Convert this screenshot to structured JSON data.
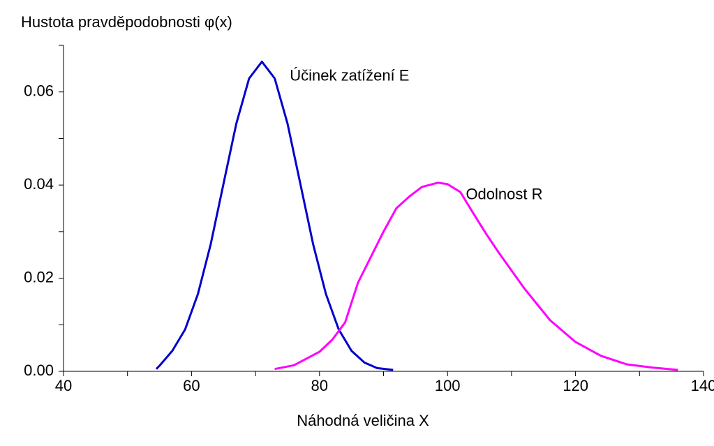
{
  "chart_data": {
    "type": "line",
    "title": "Hustota pravděpodobnosti φ(x)",
    "x_label": "Náhodná veličina X",
    "xlim": [
      40,
      140
    ],
    "xticks": [
      40,
      60,
      80,
      100,
      120,
      140
    ],
    "xminorticks": [
      50,
      70,
      90,
      110,
      130
    ],
    "ylim": [
      0,
      0.07
    ],
    "yticks": [
      {
        "value": 0,
        "label": "0.00"
      },
      {
        "value": 0.02,
        "label": "0.02"
      },
      {
        "value": 0.04,
        "label": "0.04"
      },
      {
        "value": 0.06,
        "label": "0.06"
      }
    ],
    "yminorticks": [
      0.01,
      0.03,
      0.05,
      0.07
    ],
    "grid": false,
    "series": [
      {
        "name": "Účinek zatížení E",
        "color": "#0000cc",
        "label_at": [
          71,
          0.066
        ],
        "x": [
          54.5,
          55,
          57,
          59,
          61,
          63,
          65,
          67,
          69,
          71,
          73,
          75,
          77,
          79,
          81,
          83,
          85,
          87,
          89,
          91.5
        ],
        "values": [
          0.0005,
          0.0012,
          0.0044,
          0.009,
          0.0166,
          0.0273,
          0.0403,
          0.0532,
          0.0629,
          0.0665,
          0.0629,
          0.0532,
          0.0403,
          0.0273,
          0.0166,
          0.009,
          0.0044,
          0.0019,
          0.0007,
          0.0003
        ]
      },
      {
        "name": "Odolnost R",
        "color": "#ff00ff",
        "label_at": [
          98.5,
          0.0405
        ],
        "x": [
          73,
          76,
          80,
          82,
          84,
          86,
          88,
          90,
          92,
          94,
          96,
          98.5,
          100,
          102,
          104,
          106,
          108,
          112,
          116,
          120,
          124,
          128,
          132,
          136
        ],
        "values": [
          0.0005,
          0.0013,
          0.0042,
          0.0068,
          0.0105,
          0.019,
          0.0245,
          0.03,
          0.035,
          0.0375,
          0.0396,
          0.0405,
          0.0402,
          0.0385,
          0.034,
          0.0296,
          0.0255,
          0.0178,
          0.011,
          0.0063,
          0.0033,
          0.0015,
          0.0008,
          0.0003
        ]
      }
    ]
  }
}
